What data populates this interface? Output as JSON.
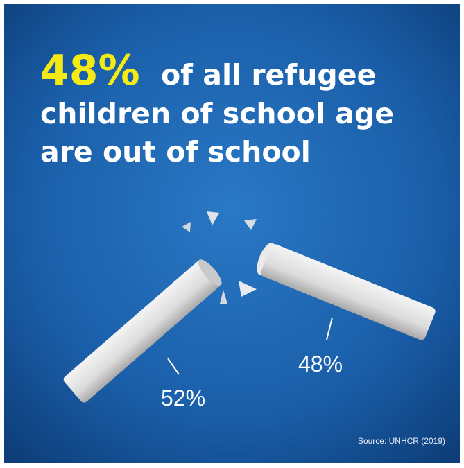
{
  "headline": {
    "highlight": "48%",
    "lines": [
      "of all refugee",
      "children of school age",
      "are out of school"
    ]
  },
  "pieces": [
    {
      "label": "52%"
    },
    {
      "label": "48%"
    }
  ],
  "source": "Source: UNHCR (2019)"
}
